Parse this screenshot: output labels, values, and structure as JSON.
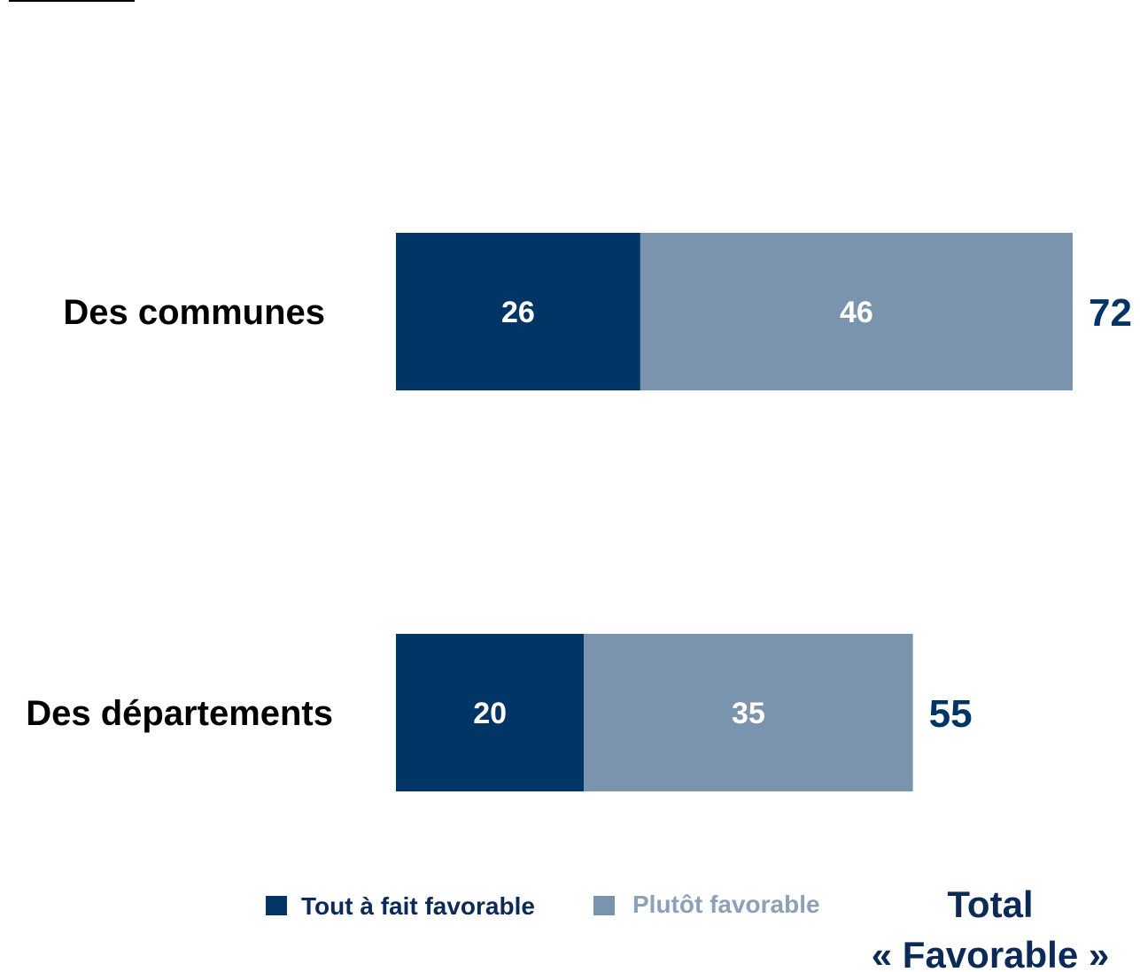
{
  "chart_data": {
    "type": "bar",
    "orientation": "horizontal",
    "stacked": true,
    "categories": [
      "Des communes",
      "Des départements"
    ],
    "series": [
      {
        "name": "Tout à fait favorable",
        "values": [
          26,
          20
        ],
        "color": "#003565"
      },
      {
        "name": "Plutôt favorable",
        "values": [
          46,
          35
        ],
        "color": "#7b94ad"
      }
    ],
    "totals": [
      72,
      55
    ],
    "total_label_line1": "Total",
    "total_label_line2": "« Favorable »",
    "xlim": [
      0,
      72
    ],
    "grid": false,
    "legend_position": "bottom",
    "colors": {
      "series1_text": "#0b2a57",
      "series2_text": "#8ca1b8",
      "total": "#003366"
    }
  }
}
